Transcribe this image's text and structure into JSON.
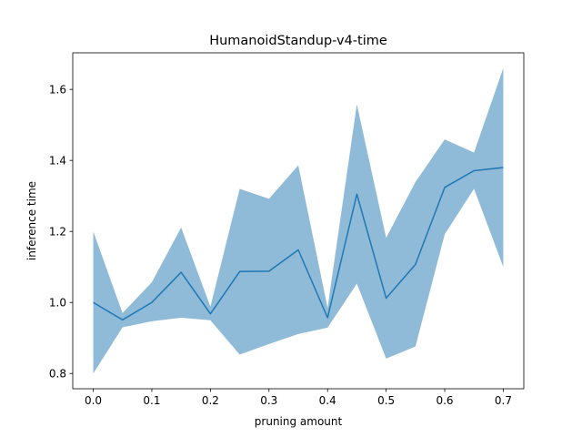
{
  "chart_data": {
    "type": "line",
    "title": "HumanoidStandup-v4-time",
    "xlabel": "pruning amount",
    "ylabel": "inference time",
    "xlim": [
      -0.035,
      0.735
    ],
    "ylim": [
      0.757,
      1.703
    ],
    "xticks": [
      0.0,
      0.1,
      0.2,
      0.3,
      0.4,
      0.5,
      0.6,
      0.7
    ],
    "yticks": [
      0.8,
      1.0,
      1.2,
      1.4,
      1.6
    ],
    "xtick_labels": [
      "0.0",
      "0.1",
      "0.2",
      "0.3",
      "0.4",
      "0.5",
      "0.6",
      "0.7"
    ],
    "ytick_labels": [
      "0.8",
      "1.0",
      "1.2",
      "1.4",
      "1.6"
    ],
    "grid": false,
    "legend": "none",
    "x": [
      0.0,
      0.05,
      0.1,
      0.15,
      0.2,
      0.25,
      0.3,
      0.35,
      0.4,
      0.45,
      0.5,
      0.55,
      0.6,
      0.65,
      0.7
    ],
    "series": [
      {
        "values": [
          1.0,
          0.951,
          1.0,
          1.085,
          0.968,
          1.087,
          1.088,
          1.148,
          0.957,
          1.305,
          1.012,
          1.107,
          1.324,
          1.371,
          1.38
        ],
        "lower": [
          0.8,
          0.93,
          0.947,
          0.957,
          0.95,
          0.853,
          0.883,
          0.911,
          0.929,
          1.053,
          0.842,
          0.876,
          1.192,
          1.32,
          1.1
        ],
        "upper": [
          1.2,
          0.97,
          1.057,
          1.211,
          0.988,
          1.32,
          1.292,
          1.386,
          0.985,
          1.558,
          1.182,
          1.339,
          1.459,
          1.422,
          1.66
        ],
        "color": "#1f77b4",
        "band_color": "#1f77b4",
        "band_alpha": 0.5
      }
    ]
  }
}
